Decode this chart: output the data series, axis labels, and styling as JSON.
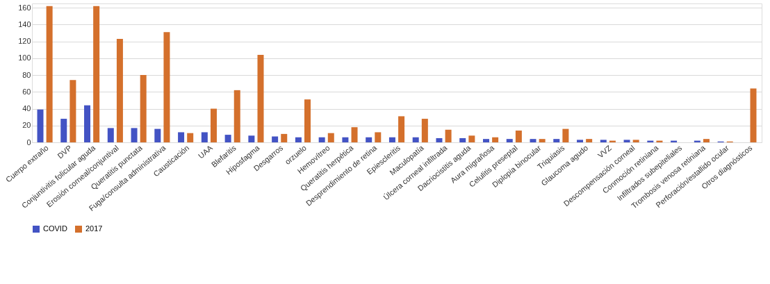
{
  "chart_data": {
    "type": "bar",
    "categories": [
      "Cuerpo extraño",
      "DVP",
      "Conjuntivitis folicular aguda",
      "Erosión corneal/conjuntival",
      "Queratitis punctata",
      "Fuga/consulta administrativa",
      "Causticación",
      "UAA",
      "Blefaritis",
      "Hiposfagma",
      "Desgarros",
      "orzuelo",
      "Hemovítreo",
      "Queratitis herpética",
      "Desprendimiento de retina",
      "Epiescleritis",
      "Maculopatía",
      "Úlcera corneal infiltrada",
      "Dacriocistitis aguda",
      "Aura migrañosa",
      "Celulitis preseptal",
      "Diplopia binocular",
      "Triquiasis",
      "Glaucoma agudo",
      "VVZ",
      "Descompensación corneal",
      "Conmoción retiniana",
      "Infiltrados subepiteliales",
      "Trombosis venosa retiniana",
      "Perforación/estallido ocular",
      "Otros diagnósticos"
    ],
    "series": [
      {
        "name": "COVID",
        "color": "#4353c4",
        "values": [
          39,
          28,
          44,
          17,
          17,
          16,
          12,
          12,
          9,
          8,
          7,
          6,
          6,
          6,
          6,
          6,
          6,
          5,
          5,
          4,
          4,
          4,
          4,
          3,
          3,
          3,
          2,
          2,
          2,
          1,
          null
        ]
      },
      {
        "name": "2017",
        "color": "#d4702c",
        "values": [
          162,
          74,
          162,
          123,
          80,
          131,
          11,
          40,
          62,
          104,
          10,
          51,
          11,
          18,
          12,
          31,
          28,
          15,
          8,
          6,
          14,
          4,
          16,
          4,
          2,
          3,
          2,
          null,
          4,
          1,
          64
        ]
      }
    ],
    "ylim": [
      0,
      165
    ],
    "yticks": [
      0,
      20,
      40,
      60,
      80,
      100,
      120,
      140,
      160
    ],
    "grid": "y",
    "legend": "bottom"
  }
}
